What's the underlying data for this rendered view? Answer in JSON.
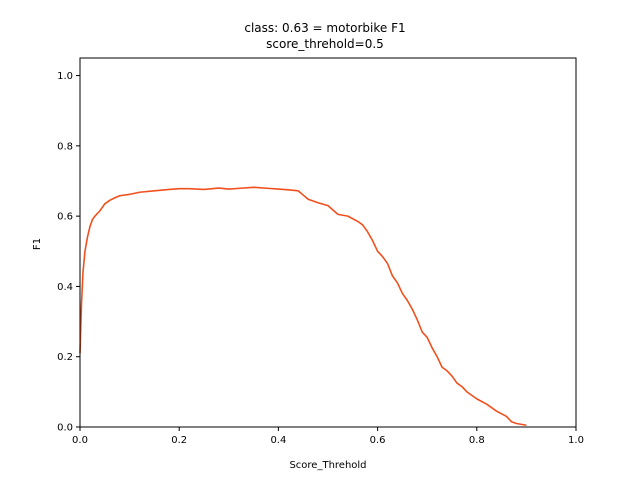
{
  "chart_data": {
    "type": "line",
    "title": "class: 0.63 = motorbike F1",
    "subtitle": "score_threhold=0.5",
    "xlabel": "Score_Threhold",
    "ylabel": "F1",
    "xlim": [
      0.0,
      1.0
    ],
    "ylim": [
      0.0,
      1.05
    ],
    "x_ticks": [
      "0.0",
      "0.2",
      "0.4",
      "0.6",
      "0.8",
      "1.0"
    ],
    "y_ticks": [
      "0.0",
      "0.2",
      "0.4",
      "0.6",
      "0.8",
      "1.0"
    ],
    "grid": false,
    "legend": "none",
    "series": [
      {
        "color": "#f0501e",
        "x": [
          0.0,
          0.003,
          0.006,
          0.01,
          0.015,
          0.02,
          0.025,
          0.03,
          0.04,
          0.05,
          0.06,
          0.07,
          0.08,
          0.1,
          0.12,
          0.15,
          0.18,
          0.2,
          0.22,
          0.25,
          0.28,
          0.3,
          0.32,
          0.35,
          0.38,
          0.4,
          0.42,
          0.44,
          0.45,
          0.46,
          0.48,
          0.5,
          0.52,
          0.54,
          0.56,
          0.57,
          0.58,
          0.59,
          0.6,
          0.61,
          0.62,
          0.63,
          0.64,
          0.65,
          0.66,
          0.67,
          0.68,
          0.69,
          0.7,
          0.71,
          0.72,
          0.73,
          0.74,
          0.75,
          0.76,
          0.77,
          0.78,
          0.8,
          0.82,
          0.84,
          0.86,
          0.87,
          0.88,
          0.9
        ],
        "y": [
          0.21,
          0.35,
          0.44,
          0.5,
          0.54,
          0.57,
          0.59,
          0.6,
          0.615,
          0.635,
          0.645,
          0.652,
          0.658,
          0.662,
          0.668,
          0.672,
          0.676,
          0.678,
          0.678,
          0.676,
          0.68,
          0.677,
          0.679,
          0.682,
          0.679,
          0.677,
          0.675,
          0.672,
          0.66,
          0.648,
          0.638,
          0.63,
          0.605,
          0.6,
          0.585,
          0.575,
          0.555,
          0.53,
          0.5,
          0.485,
          0.465,
          0.43,
          0.41,
          0.38,
          0.36,
          0.335,
          0.305,
          0.27,
          0.255,
          0.225,
          0.2,
          0.17,
          0.16,
          0.145,
          0.125,
          0.115,
          0.1,
          0.08,
          0.065,
          0.045,
          0.03,
          0.015,
          0.01,
          0.005
        ]
      }
    ]
  }
}
